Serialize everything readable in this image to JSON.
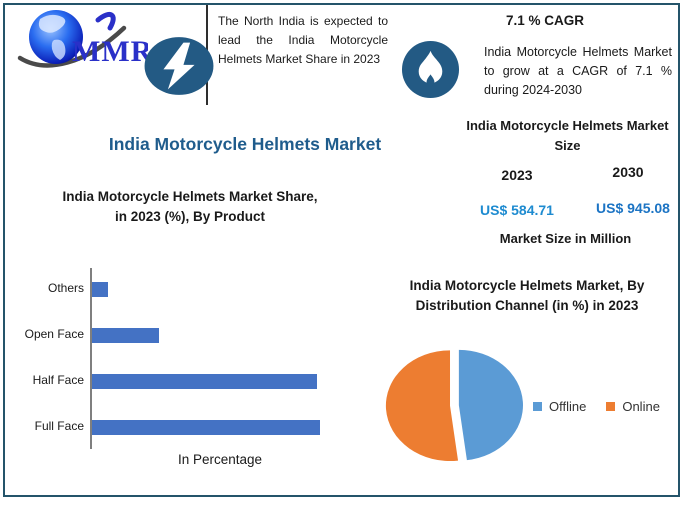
{
  "colors": {
    "frame_border": "#24546A",
    "badge_fill": "#235A84",
    "main_title": "#1F5C8C",
    "value_2023": "#1E8BD0",
    "value_2030": "#1C74C4",
    "logo_text": "#2A30C8"
  },
  "logo": {
    "text": "MMR"
  },
  "north_highlight": {
    "icon": "lightning-bolt-icon",
    "text": "The North India is expected to lead the India Motorcycle Helmets Market Share in 2023"
  },
  "main_title": "India Motorcycle Helmets Market",
  "cagr": {
    "icon": "flame-icon",
    "headline": "7.1 % CAGR",
    "text": "India Motorcycle Helmets Market to grow at a CAGR of 7.1 % during 2024-2030"
  },
  "market_size": {
    "title": "India Motorcycle Helmets Market Size",
    "year_left": "2023",
    "year_right": "2030",
    "value_left": "US$ 584.71",
    "value_right": "US$ 945.08",
    "note": "Market Size in Million"
  },
  "chart_data": [
    {
      "type": "bar",
      "orientation": "horizontal",
      "title": "India Motorcycle Helmets Market Share, in 2023 (%), By Product",
      "categories": [
        "Others",
        "Open Face",
        "Half Face",
        "Full Face"
      ],
      "values": [
        3.0,
        12.5,
        42.0,
        42.5
      ],
      "xlabel": "In Percentage",
      "bar_color": "#4472C4",
      "xlim": [
        0,
        42.5
      ],
      "grid": false,
      "legend": false
    },
    {
      "type": "pie",
      "title": "India Motorcycle Helmets Market, By Distribution Channel (in %) in 2023",
      "labels": [
        "Offline",
        "Online"
      ],
      "values": [
        48,
        52
      ],
      "colors": [
        "#5B9BD5",
        "#ED7D31"
      ],
      "legend_position": "right",
      "exploded_slice": "Offline"
    }
  ]
}
